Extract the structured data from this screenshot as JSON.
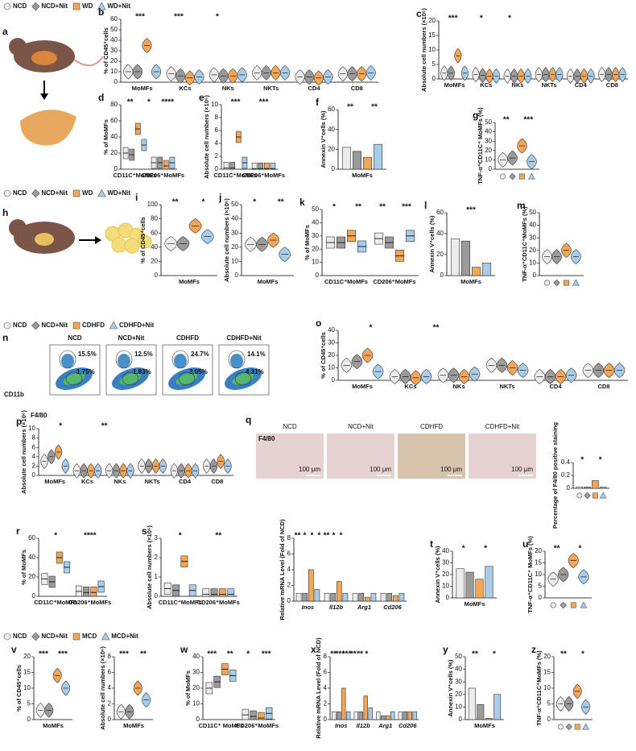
{
  "legends": [
    {
      "names": [
        "NCD",
        "NCD+Nit",
        "WD",
        "WD+Nit"
      ]
    },
    {
      "names": [
        "NCD",
        "NCD+Nit",
        "WD",
        "WD+Nit"
      ]
    },
    {
      "names": [
        "NCD",
        "NCD+Nit",
        "CDHFD",
        "CDHFD+Nit"
      ]
    },
    {
      "names": [
        "NCD",
        "NCD+Nit",
        "MCD",
        "MCD+Nit"
      ]
    }
  ],
  "group_colors": [
    "#ececec",
    "#9b9b9b",
    "#f2a65a",
    "#a9cde9"
  ],
  "group_shapes": [
    "circle",
    "diamond",
    "square",
    "triangle"
  ],
  "panels": {
    "a": "a",
    "h": "h",
    "n": "n",
    "q": "q"
  },
  "flow": {
    "x_axis": "F4/80",
    "y_axis": "CD11b",
    "plots": [
      {
        "title": "NCD",
        "gates": [
          "15.5%",
          "1.75%"
        ]
      },
      {
        "title": "NCD+Nit",
        "gates": [
          "12.5%",
          "1.83%"
        ]
      },
      {
        "title": "CDHFD",
        "gates": [
          "24.7%",
          "3.05%"
        ]
      },
      {
        "title": "CDHFD+Nit",
        "gates": [
          "14.1%",
          "4.31%"
        ]
      }
    ]
  },
  "histology": {
    "stain": "F4/80",
    "scale": "100 μm",
    "titles": [
      "NCD",
      "NCD+Nit",
      "CDHFD",
      "CDHFD+Nit"
    ]
  },
  "chart_data": [
    {
      "type": "violin",
      "label": "b",
      "ylabel": "% of CD45⁺cells",
      "categories": [
        "MoMFs",
        "KCs",
        "NKs",
        "NKTs",
        "CD4",
        "CD8"
      ],
      "values": [
        [
          10,
          10,
          35,
          10
        ],
        [
          8,
          6,
          4,
          5
        ],
        [
          7,
          6,
          6,
          7
        ],
        [
          9,
          9,
          9,
          9
        ],
        [
          5,
          5,
          4,
          5
        ],
        [
          8,
          8,
          8,
          9
        ]
      ],
      "ylim": [
        0,
        60
      ],
      "yticks": [
        0,
        10,
        20,
        30,
        40,
        50,
        60
      ],
      "annotations": [
        "***",
        "***",
        "*"
      ]
    },
    {
      "type": "violin",
      "label": "c",
      "ylabel": "Absolute cell numbers (×10⁶)",
      "categories": [
        "MoMFs",
        "KCs",
        "NKs",
        "NKTs",
        "CD4",
        "CD8"
      ],
      "values": [
        [
          2,
          2,
          8,
          2
        ],
        [
          1.5,
          1.2,
          1,
          1
        ],
        [
          1,
          1,
          1,
          1
        ],
        [
          1.5,
          1.5,
          1.5,
          1.5
        ],
        [
          1,
          1,
          1,
          1
        ],
        [
          1.5,
          1.5,
          1.5,
          1.5
        ]
      ],
      "ylim": [
        0,
        20
      ],
      "yticks": [
        0,
        5,
        10,
        15,
        20
      ],
      "annotations": [
        "***",
        "*",
        "*"
      ]
    },
    {
      "type": "box",
      "label": "d",
      "ylabel": "% of MoMFs",
      "categories": [
        "CD11C⁺MoMFs",
        "CD206⁺MoMFs"
      ],
      "values": [
        [
          20,
          18,
          50,
          30
        ],
        [
          8,
          8,
          4,
          8
        ]
      ],
      "ylim": [
        0,
        80
      ],
      "yticks": [
        0,
        20,
        40,
        60,
        80
      ],
      "annotations": [
        "**",
        "*",
        "****"
      ]
    },
    {
      "type": "box",
      "label": "e",
      "ylabel": "Absolute cell numbers (×10⁶)",
      "categories": [
        "CD11C⁺MoMFs",
        "CD206⁺MoMFs"
      ],
      "values": [
        [
          0.2,
          0.2,
          5,
          1
        ],
        [
          0.1,
          0.1,
          0.1,
          0.1
        ]
      ],
      "ylim": [
        0,
        10
      ],
      "yticks": [
        0,
        2,
        4,
        6,
        8,
        10
      ],
      "annotations": [
        "***",
        "***"
      ]
    },
    {
      "type": "bar",
      "label": "f",
      "ylabel": "Annexin V⁺cells (%)",
      "categories": [
        "MoMFs"
      ],
      "values": [
        [
          22,
          18,
          12,
          25
        ]
      ],
      "ylim": [
        0,
        60
      ],
      "yticks": [
        0,
        20,
        40,
        60
      ],
      "annotations": [
        "**",
        "**"
      ]
    },
    {
      "type": "violin",
      "label": "g",
      "ylabel": "TNF-α⁺CD11C⁺ MoMFs (%)",
      "categories": [
        null
      ],
      "values": [
        [
          10,
          12,
          25,
          8
        ]
      ],
      "ylim": [
        0,
        50
      ],
      "yticks": [
        0,
        10,
        20,
        30,
        40,
        50
      ],
      "annotations": [
        "**",
        "***"
      ]
    },
    {
      "type": "violin",
      "label": "i",
      "ylabel": "% of CD45⁺cells",
      "categories": [
        "MoMFs"
      ],
      "values": [
        [
          45,
          45,
          70,
          55
        ]
      ],
      "ylim": [
        0,
        100
      ],
      "yticks": [
        0,
        20,
        40,
        60,
        80,
        100
      ],
      "annotations": [
        "**",
        "*"
      ]
    },
    {
      "type": "violin",
      "label": "j",
      "ylabel": "Absolute cell numbers (×10⁶)",
      "categories": [
        "MoMFs"
      ],
      "values": [
        [
          22,
          22,
          25,
          15
        ]
      ],
      "ylim": [
        0,
        50
      ],
      "yticks": [
        0,
        10,
        20,
        30,
        40,
        50
      ],
      "annotations": [
        "*",
        "**"
      ]
    },
    {
      "type": "box",
      "label": "k",
      "ylabel": "% of MoMFs",
      "categories": [
        "CD11C⁺MoMFs",
        "CD206⁺MoMFs"
      ],
      "values": [
        [
          25,
          25,
          30,
          22
        ],
        [
          28,
          25,
          15,
          30
        ]
      ],
      "ylim": [
        0,
        50
      ],
      "yticks": [
        0,
        10,
        20,
        30,
        40,
        50
      ],
      "annotations": [
        "*",
        "**",
        "**",
        "***"
      ]
    },
    {
      "type": "bar",
      "label": "l",
      "ylabel": "Annexin V⁺cells (%)",
      "categories": [
        "MoMFs"
      ],
      "values": [
        [
          35,
          33,
          8,
          12
        ]
      ],
      "ylim": [
        0,
        60
      ],
      "yticks": [
        0,
        20,
        40,
        60
      ],
      "annotations": [
        "***"
      ]
    },
    {
      "type": "violin",
      "label": "m",
      "ylabel": "TNF-α⁺CD11C⁺MoMFs (%)",
      "categories": [
        null
      ],
      "values": [
        [
          15,
          15,
          20,
          15
        ]
      ],
      "ylim": [
        0,
        50
      ],
      "yticks": [
        0,
        10,
        20,
        30,
        40,
        50
      ],
      "annotations": []
    },
    {
      "type": "violin",
      "label": "o",
      "ylabel": "% of CD45⁺cells",
      "categories": [
        "MoMFs",
        "KCs",
        "NKs",
        "NKTs",
        "CD4",
        "CD8"
      ],
      "values": [
        [
          12,
          15,
          20,
          7
        ],
        [
          3,
          3,
          2,
          3
        ],
        [
          4,
          4,
          3,
          5
        ],
        [
          12,
          12,
          10,
          8
        ],
        [
          3,
          3,
          3,
          4
        ],
        [
          8,
          8,
          8,
          8
        ]
      ],
      "ylim": [
        0,
        40
      ],
      "yticks": [
        0,
        10,
        20,
        30,
        40
      ],
      "annotations": [
        "*",
        "**"
      ]
    },
    {
      "type": "violin",
      "label": "p",
      "ylabel": "Absolute cell numbers (×10⁶)",
      "categories": [
        "MoMFs",
        "KCs",
        "NKs",
        "NKTs",
        "CD4",
        "CD8"
      ],
      "values": [
        [
          3,
          4,
          5,
          2
        ],
        [
          1,
          1,
          1,
          1
        ],
        [
          1,
          1,
          1,
          1
        ],
        [
          2,
          2,
          2,
          2
        ],
        [
          1,
          1,
          1,
          1
        ],
        [
          2,
          2,
          3,
          2
        ]
      ],
      "ylim": [
        0,
        10
      ],
      "yticks": [
        0,
        2,
        4,
        6,
        8,
        10
      ],
      "annotations": [
        "*",
        "**"
      ]
    },
    {
      "type": "bar",
      "ylabel": "Percentage of F4/80 positive staining",
      "categories": [
        null
      ],
      "values": [
        [
          0.02,
          0.02,
          0.12,
          0.02
        ]
      ],
      "ylim": [
        0,
        0.4
      ],
      "yticks": [
        0,
        0.2,
        0.4
      ],
      "annotations": [
        "*",
        "*"
      ]
    },
    {
      "type": "box",
      "label": "r",
      "ylabel": "% of MoMFs",
      "categories": [
        "CD11C⁺MoMFs",
        "CD206⁺MoMFs"
      ],
      "values": [
        [
          18,
          15,
          40,
          30
        ],
        [
          5,
          4,
          4,
          10
        ]
      ],
      "ylim": [
        0,
        60
      ],
      "yticks": [
        0,
        20,
        40,
        60
      ],
      "annotations": [
        "*",
        "****"
      ]
    },
    {
      "type": "box",
      "label": "s",
      "ylabel": "Absolute cell numbers (×10⁶)",
      "categories": [
        "CD11C⁺MoMFs",
        "CD206⁺MoMFs"
      ],
      "values": [
        [
          0.4,
          0.3,
          1.8,
          0.3
        ],
        [
          0.1,
          0.1,
          0.1,
          0.1
        ]
      ],
      "ylim": [
        0,
        3
      ],
      "yticks": [
        0,
        1,
        2,
        3
      ],
      "annotations": [
        "*",
        "**"
      ]
    },
    {
      "type": "bar",
      "ylabel": "Relative mRNA Level (Fold of NCD)",
      "italic": true,
      "categories": [
        "Inos",
        "Il12b",
        "Arg1",
        "Cd206"
      ],
      "values": [
        [
          1,
          1,
          4,
          1.5
        ],
        [
          1,
          1,
          2.5,
          1
        ],
        [
          1,
          1,
          0.5,
          1
        ],
        [
          1,
          1,
          0.7,
          1
        ]
      ],
      "ylim": [
        0,
        8
      ],
      "yticks": [
        0,
        2,
        4,
        6,
        8
      ],
      "annotations": [
        "**",
        "*",
        "*",
        "*",
        "**",
        "*",
        "*"
      ]
    },
    {
      "type": "bar",
      "label": "t",
      "ylabel": "Annexin V⁺cells (%)",
      "categories": [
        "MoMFs"
      ],
      "values": [
        [
          25,
          22,
          16,
          27
        ]
      ],
      "ylim": [
        0,
        40
      ],
      "yticks": [
        0,
        10,
        20,
        30,
        40
      ],
      "annotations": [
        "*",
        "*"
      ]
    },
    {
      "type": "violin",
      "label": "u",
      "ylabel": "TNF-α⁺CD11C⁺ MoMFs (%)",
      "categories": [
        null
      ],
      "values": [
        [
          8,
          10,
          16,
          9
        ]
      ],
      "ylim": [
        0,
        20
      ],
      "yticks": [
        0,
        5,
        10,
        15,
        20
      ],
      "annotations": [
        "**",
        "*"
      ]
    },
    {
      "type": "violin",
      "label": "v",
      "ylabel": "% of CD45⁺cells",
      "categories": [
        "MoMFs"
      ],
      "values": [
        [
          3,
          3,
          14,
          10
        ]
      ],
      "ylim": [
        0,
        20
      ],
      "yticks": [
        0,
        5,
        10,
        15,
        20
      ],
      "annotations": [
        "***",
        "***"
      ]
    },
    {
      "type": "violin",
      "ylabel": "Absolute cell numbers (×10⁶)",
      "categories": [
        "MoMFs"
      ],
      "values": [
        [
          1,
          1,
          4,
          2.5
        ]
      ],
      "ylim": [
        0,
        8
      ],
      "yticks": [
        0,
        2,
        4,
        6,
        8
      ],
      "annotations": [
        "***",
        "**"
      ]
    },
    {
      "type": "box",
      "label": "w",
      "ylabel": "% of MoMFs",
      "categories": [
        "CD11C⁺ MoMFs",
        "CD206⁺MoMFs"
      ],
      "values": [
        [
          20,
          24,
          32,
          28
        ],
        [
          3,
          2,
          1,
          4
        ]
      ],
      "ylim": [
        0,
        40
      ],
      "yticks": [
        0,
        10,
        20,
        30,
        40
      ],
      "annotations": [
        "***",
        "**",
        "*",
        "***"
      ]
    },
    {
      "type": "bar",
      "label": "x",
      "ylabel": "Relative mRNA Level (Fold of NCD)",
      "italic": true,
      "categories": [
        "Inos",
        "Il12b",
        "Arg1",
        "Cd206"
      ],
      "values": [
        [
          1,
          1,
          4,
          1
        ],
        [
          1,
          1,
          3,
          1.5
        ],
        [
          1,
          0.5,
          0.5,
          1
        ],
        [
          1,
          1,
          1,
          1
        ]
      ],
      "ylim": [
        0,
        8
      ],
      "yticks": [
        0,
        2,
        4,
        6,
        8
      ],
      "annotations": [
        "**",
        "***",
        "***",
        "**",
        "**",
        "*"
      ]
    },
    {
      "type": "bar",
      "label": "y",
      "ylabel": "Annexin V⁺cells (%)",
      "categories": [
        "MoMFs"
      ],
      "values": [
        [
          25,
          12,
          1,
          20
        ]
      ],
      "ylim": [
        0,
        50
      ],
      "yticks": [
        0,
        10,
        20,
        30,
        40,
        50
      ],
      "annotations": [
        "**",
        "*"
      ]
    },
    {
      "type": "violin",
      "label": "z",
      "ylabel": "TNF-α⁺CD11C⁺MoMFs (%)",
      "categories": [
        null
      ],
      "values": [
        [
          5,
          5,
          9,
          4
        ]
      ],
      "ylim": [
        0,
        20
      ],
      "yticks": [
        0,
        5,
        10,
        15,
        20
      ],
      "annotations": [
        "**",
        "*"
      ]
    }
  ]
}
